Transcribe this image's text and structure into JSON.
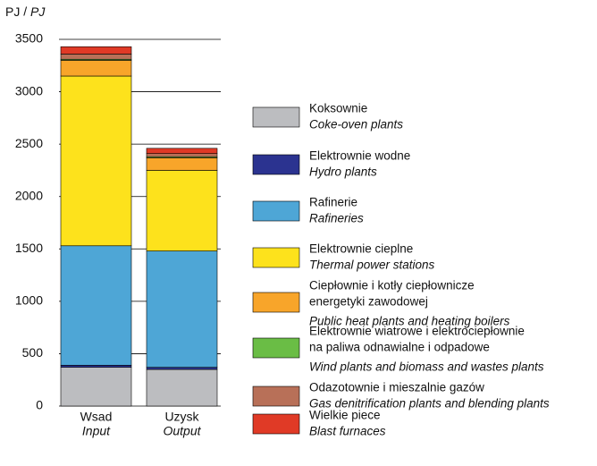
{
  "chart_data": {
    "type": "stacked_bar",
    "y_label": "PJ",
    "y_label_en": "PJ",
    "categories": [
      "Wsad",
      "Uzysk"
    ],
    "categories_en": [
      "Input",
      "Output"
    ],
    "ylim": [
      0,
      3500
    ],
    "yticks": [
      0,
      500,
      1000,
      1500,
      2000,
      2500,
      3000,
      3500
    ],
    "grid": true,
    "series": [
      {
        "name": [
          "Koksownie"
        ],
        "name_en": "Coke-oven plants",
        "color": "#bcbdc0",
        "values": [
          370,
          350
        ]
      },
      {
        "name": [
          "Elektrownie wodne"
        ],
        "name_en": "Hydro plants",
        "color": "#2b3390",
        "values": [
          20,
          20
        ]
      },
      {
        "name": [
          "Rafinerie"
        ],
        "name_en": "Rafineries",
        "color": "#4ea6d6",
        "values": [
          1140,
          1110
        ]
      },
      {
        "name": [
          "Elektrownie cieplne"
        ],
        "name_en": "Thermal power stations",
        "color": "#fde21c",
        "values": [
          1620,
          770
        ]
      },
      {
        "name": [
          "Ciepłownie i kotły ciepłownicze",
          "energetyki zawodowej"
        ],
        "name_en": "Public heat plants and heating boilers",
        "color": "#f8a52a",
        "values": [
          150,
          120
        ]
      },
      {
        "name": [
          "Elektrownie wiatrowe i elektrociepłownie",
          "na paliwa odnawialne i odpadowe"
        ],
        "name_en": "Wind plants and biomass and wastes plants",
        "color": "#6abd45",
        "values": [
          10,
          10
        ]
      },
      {
        "name": [
          "Odazotownie i mieszalnie gazów"
        ],
        "name_en": "Gas denitrification plants and blending plants",
        "color": "#b87058",
        "values": [
          50,
          30
        ]
      },
      {
        "name": [
          "Wielkie piece"
        ],
        "name_en": "Blast furnaces",
        "color": "#e03a26",
        "values": [
          70,
          50
        ]
      }
    ]
  }
}
